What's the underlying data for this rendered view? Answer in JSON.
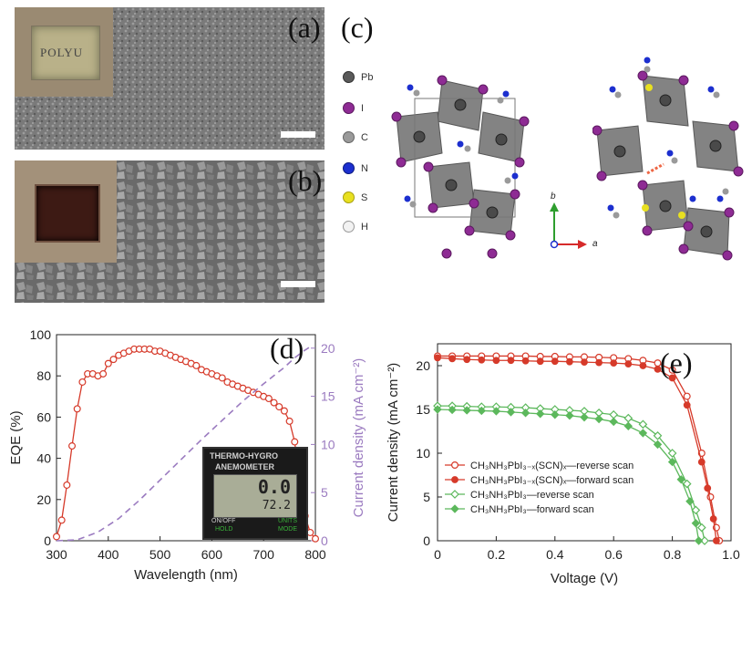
{
  "panels": {
    "a": {
      "label": "(a)",
      "inset_text": "POLYU"
    },
    "b": {
      "label": "(b)"
    },
    "c": {
      "label": "(c)",
      "legend": [
        {
          "symbol": "Pb",
          "color": "#5a5a5a"
        },
        {
          "symbol": "I",
          "color": "#8e2b94"
        },
        {
          "symbol": "C",
          "color": "#9a9a9a"
        },
        {
          "symbol": "N",
          "color": "#1c2fcf"
        },
        {
          "symbol": "S",
          "color": "#e8e020"
        },
        {
          "symbol": "H",
          "color": "#f2f2f2"
        }
      ],
      "axis_b": "b",
      "axis_a": "a"
    },
    "d": {
      "label": "(d)",
      "device_display": {
        "line1": "THERMO-HYGRO",
        "line2": "ANEMOMETER",
        "reading_top": "0.0",
        "reading_bottom": "72.2",
        "btn_left_top": "ON/OFF",
        "btn_left_bottom": "HOLD",
        "btn_right_top": "UNITS",
        "btn_right_bottom": "MODE"
      }
    },
    "e": {
      "label": "(e)"
    }
  },
  "chart_data": [
    {
      "id": "d",
      "type": "line",
      "xlabel": "Wavelength (nm)",
      "ylabel": "EQE (%)",
      "y2label": "Current density (mA cm⁻²)",
      "xlim": [
        300,
        800
      ],
      "ylim": [
        0,
        100
      ],
      "y2lim": [
        0,
        21.4
      ],
      "xticks": [
        "300",
        "400",
        "500",
        "600",
        "700",
        "800"
      ],
      "yticks": [
        "0",
        "20",
        "40",
        "60",
        "80",
        "100"
      ],
      "y2ticks": [
        "0",
        "5",
        "10",
        "15",
        "20"
      ],
      "series": [
        {
          "color": "#d63a2a",
          "marker": "open-circle",
          "axis": "left",
          "x": [
            300,
            310,
            320,
            330,
            340,
            350,
            360,
            370,
            380,
            390,
            400,
            410,
            420,
            430,
            440,
            450,
            460,
            470,
            480,
            490,
            500,
            510,
            520,
            530,
            540,
            550,
            560,
            570,
            580,
            590,
            600,
            610,
            620,
            630,
            640,
            650,
            660,
            670,
            680,
            690,
            700,
            710,
            720,
            730,
            740,
            750,
            760,
            770,
            780,
            790,
            800
          ],
          "y": [
            2,
            10,
            27,
            46,
            64,
            77,
            81,
            81,
            80,
            81,
            86,
            88,
            90,
            91,
            92,
            93,
            93,
            93,
            93,
            92,
            92,
            91,
            90,
            89,
            88,
            87,
            86,
            85,
            83,
            82,
            81,
            80,
            79,
            77,
            76,
            75,
            74,
            73,
            72,
            71,
            70,
            69,
            67,
            65,
            63,
            58,
            48,
            28,
            12,
            4,
            1
          ]
        },
        {
          "color": "#9b7bc0",
          "style": "dashed",
          "axis": "right",
          "x": [
            300,
            340,
            380,
            420,
            460,
            500,
            540,
            580,
            620,
            660,
            700,
            740,
            760,
            780,
            795
          ],
          "y": [
            0,
            0.1,
            0.9,
            2.3,
            4.2,
            6.3,
            8.4,
            10.5,
            12.5,
            14.5,
            16.3,
            18.0,
            19.0,
            19.8,
            20.3
          ]
        }
      ]
    },
    {
      "id": "e",
      "type": "line",
      "xlabel": "Voltage (V)",
      "ylabel": "Current density  (mA cm⁻²)",
      "xlim": [
        0,
        1.0
      ],
      "ylim": [
        0,
        22.5
      ],
      "xticks": [
        "0",
        "0.2",
        "0.4",
        "0.6",
        "0.8",
        "1.0"
      ],
      "yticks": [
        "0",
        "5",
        "10",
        "15",
        "20"
      ],
      "legend_position": "lower-left",
      "series": [
        {
          "name": "CH₃NH₃PbI₃₋ₓ(SCN)ₓ—reverse scan",
          "color": "#d63a2a",
          "marker": "open-circle",
          "x": [
            0,
            0.05,
            0.1,
            0.15,
            0.2,
            0.25,
            0.3,
            0.35,
            0.4,
            0.45,
            0.5,
            0.55,
            0.6,
            0.65,
            0.7,
            0.75,
            0.8,
            0.85,
            0.9,
            0.93,
            0.95,
            0.96
          ],
          "y": [
            21.1,
            21.1,
            21.1,
            21.1,
            21.1,
            21.1,
            21.1,
            21.05,
            21.05,
            21.0,
            21.0,
            20.95,
            20.9,
            20.8,
            20.6,
            20.3,
            19.5,
            16.5,
            10.0,
            5.0,
            1.5,
            0
          ]
        },
        {
          "name": "CH₃NH₃PbI₃₋ₓ(SCN)ₓ—forward scan",
          "color": "#d63a2a",
          "marker": "filled-circle",
          "x": [
            0,
            0.05,
            0.1,
            0.15,
            0.2,
            0.25,
            0.3,
            0.35,
            0.4,
            0.45,
            0.5,
            0.55,
            0.6,
            0.65,
            0.7,
            0.75,
            0.8,
            0.85,
            0.9,
            0.92,
            0.94,
            0.95
          ],
          "y": [
            20.9,
            20.8,
            20.7,
            20.65,
            20.6,
            20.6,
            20.55,
            20.5,
            20.5,
            20.45,
            20.4,
            20.35,
            20.3,
            20.2,
            20.0,
            19.6,
            18.6,
            15.5,
            9.0,
            6.0,
            2.5,
            0
          ]
        },
        {
          "name": "CH₃NH₃PbI₃—reverse scan",
          "color": "#5cb85c",
          "marker": "open-diamond",
          "x": [
            0,
            0.05,
            0.1,
            0.15,
            0.2,
            0.25,
            0.3,
            0.35,
            0.4,
            0.45,
            0.5,
            0.55,
            0.6,
            0.65,
            0.7,
            0.75,
            0.8,
            0.85,
            0.88,
            0.9,
            0.91
          ],
          "y": [
            15.4,
            15.4,
            15.35,
            15.3,
            15.3,
            15.25,
            15.2,
            15.1,
            15.0,
            14.9,
            14.8,
            14.6,
            14.4,
            14.0,
            13.3,
            12.0,
            10.0,
            6.5,
            3.5,
            1.5,
            0
          ]
        },
        {
          "name": "CH₃NH₃PbI₃—forward scan",
          "color": "#5cb85c",
          "marker": "filled-diamond",
          "x": [
            0,
            0.05,
            0.1,
            0.15,
            0.2,
            0.25,
            0.3,
            0.35,
            0.4,
            0.45,
            0.5,
            0.55,
            0.6,
            0.65,
            0.7,
            0.75,
            0.8,
            0.83,
            0.86,
            0.88,
            0.89
          ],
          "y": [
            15.0,
            14.95,
            14.9,
            14.85,
            14.8,
            14.7,
            14.6,
            14.5,
            14.4,
            14.3,
            14.1,
            13.9,
            13.6,
            13.1,
            12.3,
            11.0,
            9.0,
            7.0,
            4.5,
            2.0,
            0
          ]
        }
      ]
    }
  ]
}
